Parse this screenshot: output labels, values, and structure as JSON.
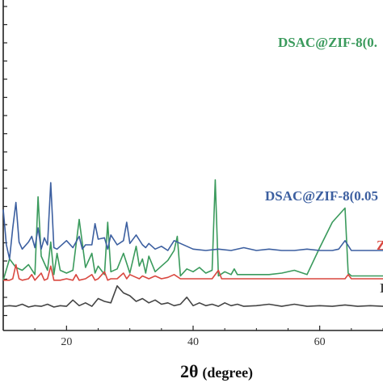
{
  "chart_data": {
    "type": "line",
    "title": "",
    "xlabel": "2θ",
    "xlabel_unit": "(degree)",
    "ylabel": "",
    "xlim": [
      10,
      70
    ],
    "x_ticks": [
      20,
      40,
      60
    ],
    "grid": false,
    "legend": "inline labels at right end of each curve",
    "series": [
      {
        "name": "DSAC@ZIF-8(0.",
        "color": "#3a9a5c",
        "x": [
          10,
          11,
          12,
          13,
          14,
          15,
          15.5,
          16,
          17,
          17.5,
          18,
          18.5,
          19,
          20,
          21,
          22,
          23,
          24,
          24.5,
          25,
          26,
          26.5,
          27,
          28,
          29,
          30,
          31,
          31.5,
          32,
          32.5,
          33,
          34,
          35,
          36,
          37,
          37.5,
          38,
          39,
          40,
          41,
          42,
          43,
          43.5,
          44,
          45,
          46,
          46.5,
          47,
          48,
          50,
          52,
          54,
          56,
          58,
          60,
          62,
          64,
          64.5,
          65,
          66,
          68,
          70
        ],
        "y": [
          1.9,
          3.4,
          2.8,
          2.6,
          3.0,
          2.3,
          7.8,
          3.6,
          2.6,
          4.6,
          2.3,
          3.8,
          2.6,
          2.4,
          2.6,
          6.2,
          2.8,
          3.8,
          2.4,
          2.9,
          2.3,
          6.0,
          2.5,
          2.7,
          3.8,
          2.4,
          4.3,
          2.9,
          3.4,
          2.4,
          3.6,
          2.5,
          2.9,
          3.3,
          4.0,
          5.0,
          2.2,
          2.7,
          2.5,
          2.8,
          2.4,
          2.6,
          9.0,
          2.2,
          2.5,
          2.3,
          2.7,
          2.3,
          2.3,
          2.3,
          2.3,
          2.4,
          2.6,
          2.3,
          4.2,
          6.0,
          7.0,
          2.4,
          2.2,
          2.2,
          2.2,
          2.2
        ]
      },
      {
        "name": "DSAC@ZIF-8(0.05",
        "color": "#3c5fa0",
        "x": [
          10,
          10.5,
          11,
          11.5,
          12,
          12.5,
          13,
          14,
          14.5,
          15,
          15.5,
          16,
          16.5,
          17,
          17.5,
          18,
          18.5,
          19,
          20,
          21,
          22,
          22.5,
          23,
          24,
          24.5,
          25,
          26,
          26.5,
          27,
          28,
          29,
          29.5,
          30,
          31,
          32,
          32.5,
          33,
          34,
          35,
          36,
          37,
          38,
          39,
          40,
          42,
          44,
          46,
          48,
          50,
          52,
          54,
          56,
          58,
          60,
          62,
          63,
          64,
          65,
          66,
          68,
          70
        ],
        "y": [
          6.9,
          4.4,
          3.4,
          5.6,
          7.4,
          4.6,
          4.1,
          4.6,
          5.0,
          4.2,
          5.6,
          4.1,
          4.9,
          4.4,
          8.8,
          4.2,
          4.1,
          4.3,
          4.7,
          4.2,
          5.0,
          4.1,
          4.4,
          4.4,
          5.9,
          4.8,
          4.9,
          4.1,
          5.1,
          4.4,
          4.7,
          6.0,
          4.5,
          5.1,
          4.4,
          4.2,
          4.5,
          4.1,
          4.3,
          4.0,
          4.7,
          4.5,
          4.3,
          4.1,
          4.0,
          4.1,
          4.0,
          4.2,
          4.0,
          4.1,
          4.0,
          4.0,
          4.1,
          4.0,
          4.0,
          4.1,
          4.7,
          4.0,
          4.0,
          4.0,
          4.0
        ]
      },
      {
        "name": "Z",
        "color": "#d9473f",
        "x": [
          10,
          11,
          11.5,
          12,
          12.5,
          13,
          14,
          14.5,
          15,
          16,
          16.5,
          17,
          17.5,
          18,
          19,
          20,
          21,
          21.5,
          22,
          23,
          24,
          24.5,
          25,
          26,
          26.5,
          27,
          28,
          29,
          29.5,
          30,
          31,
          31.5,
          32,
          33,
          34,
          35,
          36,
          37,
          38,
          39,
          40,
          42,
          43,
          44,
          44.5,
          45,
          46,
          48,
          50,
          52,
          54,
          56,
          58,
          60,
          62,
          64,
          64.5,
          65,
          66,
          68,
          70
        ],
        "y": [
          1.9,
          1.9,
          2.0,
          3.0,
          2.0,
          1.9,
          2.0,
          2.3,
          1.9,
          2.4,
          1.9,
          2.0,
          2.9,
          1.9,
          1.9,
          2.0,
          1.9,
          2.3,
          1.9,
          2.0,
          2.3,
          1.9,
          2.0,
          2.5,
          1.9,
          2.0,
          2.0,
          2.4,
          2.0,
          2.3,
          2.1,
          2.0,
          2.2,
          2.0,
          2.2,
          2.0,
          2.1,
          2.3,
          2.0,
          2.0,
          2.0,
          2.0,
          2.0,
          2.6,
          2.0,
          2.0,
          2.0,
          2.0,
          2.0,
          2.0,
          2.0,
          2.0,
          2.0,
          2.0,
          2.0,
          2.0,
          2.3,
          2.0,
          2.0,
          2.0,
          2.0
        ]
      },
      {
        "name": "I",
        "color": "#444444",
        "x": [
          10,
          11,
          12,
          13,
          14,
          15,
          16,
          17,
          18,
          19,
          20,
          21,
          22,
          23,
          24,
          25,
          26,
          27,
          28,
          29,
          30,
          31,
          32,
          33,
          34,
          35,
          36,
          37,
          38,
          39,
          40,
          41,
          42,
          43,
          44,
          45,
          46,
          47,
          48,
          50,
          52,
          54,
          56,
          58,
          60,
          62,
          64,
          66,
          68,
          70
        ],
        "y": [
          0.05,
          0.1,
          0.05,
          0.2,
          0.0,
          0.1,
          0.05,
          0.2,
          0.0,
          0.1,
          0.05,
          0.5,
          0.1,
          0.3,
          0.05,
          0.6,
          0.4,
          0.3,
          1.5,
          1.0,
          0.8,
          0.4,
          0.6,
          0.3,
          0.5,
          0.2,
          0.3,
          0.1,
          0.2,
          0.7,
          0.1,
          0.3,
          0.1,
          0.2,
          0.05,
          0.3,
          0.1,
          0.2,
          0.05,
          0.1,
          0.2,
          0.05,
          0.2,
          0.05,
          0.1,
          0.05,
          0.15,
          0.05,
          0.1,
          0.05
        ]
      }
    ]
  }
}
